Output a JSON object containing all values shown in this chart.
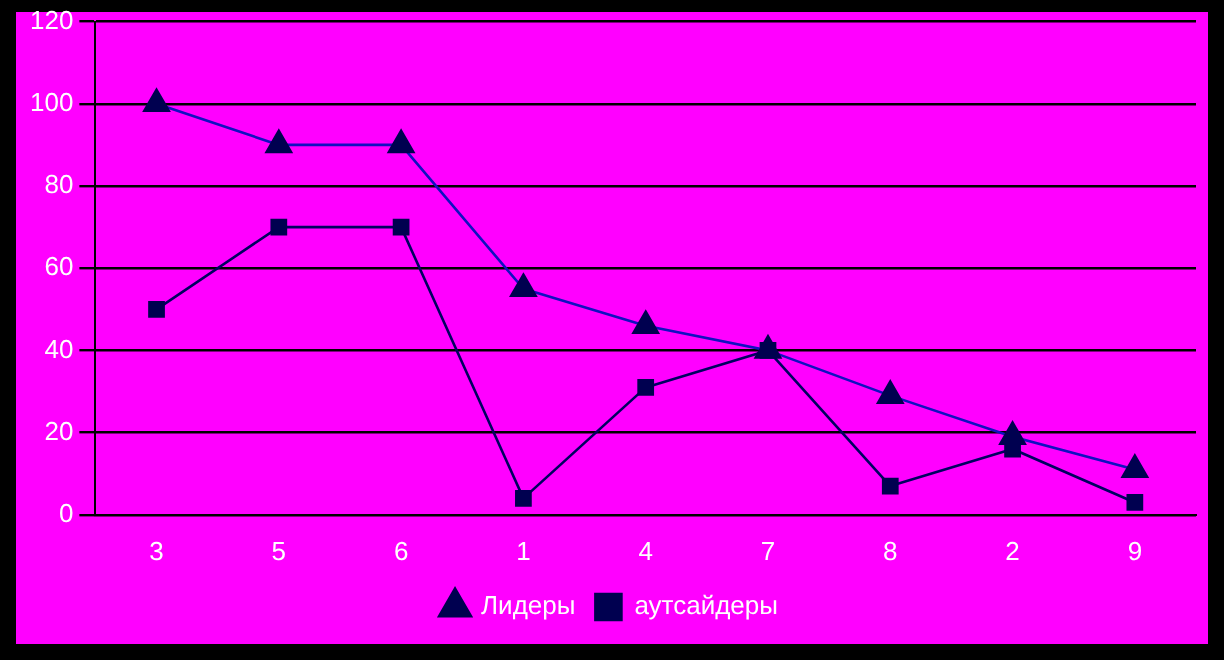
{
  "chart_data": {
    "type": "line",
    "categories": [
      "3",
      "5",
      "6",
      "1",
      "4",
      "7",
      "8",
      "2",
      "9"
    ],
    "series": [
      {
        "name": "Лидеры",
        "color": "#1010c0",
        "marker": "triangle",
        "values": [
          100,
          90,
          90,
          55,
          46,
          40,
          29,
          19,
          11
        ]
      },
      {
        "name": "аутсайдеры",
        "color": "#000060",
        "marker": "square",
        "values": [
          50,
          70,
          70,
          4,
          31,
          40,
          7,
          16,
          3
        ]
      }
    ],
    "ylim": [
      0,
      120
    ],
    "yticks": [
      0,
      20,
      40,
      60,
      80,
      100,
      120
    ],
    "grid": "y",
    "legend": "bottom"
  }
}
